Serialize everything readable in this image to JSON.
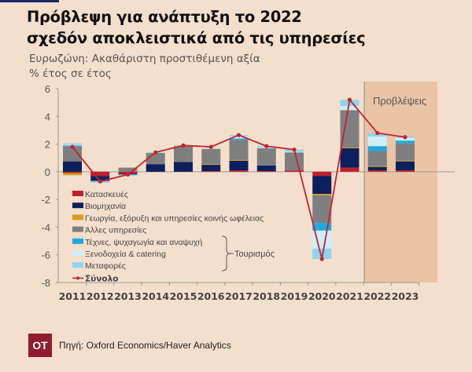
{
  "title_lines": [
    "Πρόβλεψη για ανάπτυξη το 2022",
    "σχεδόν αποκλειστικά από τις υπηρεσίες"
  ],
  "subtitle_lines": [
    "Ευρωζώνη: Ακαθάριστη προστιθέμενη αξία",
    "% έτος σε έτος"
  ],
  "source": "Πηγή: Oxford Economics/Haver Analytics",
  "logo_text": "OT",
  "chart_data": {
    "type": "bar",
    "stacked": true,
    "categories": [
      "2011",
      "2012",
      "2013",
      "2014",
      "2015",
      "2016",
      "2017",
      "2018",
      "2019",
      "2020",
      "2021",
      "2022",
      "2023"
    ],
    "ylim": [
      -8,
      6
    ],
    "yticks": [
      "6",
      "4",
      "2",
      "0",
      "-2",
      "-4",
      "-6",
      "-8"
    ],
    "forecast_label": "Προβλέψεις",
    "forecast_categories": [
      "2022",
      "2023"
    ],
    "group_label": "Τουρισμός",
    "series": [
      {
        "name": "Κατασκευές",
        "color": "#c0202a",
        "values": [
          -0.1,
          -0.3,
          -0.15,
          0.0,
          0.0,
          0.05,
          0.1,
          0.05,
          0.1,
          -0.3,
          0.3,
          0.1,
          0.1
        ]
      },
      {
        "name": "Βιομηχανία",
        "color": "#0d1f5c",
        "values": [
          0.75,
          -0.35,
          -0.05,
          0.55,
          0.7,
          0.45,
          0.7,
          0.4,
          0.0,
          -1.3,
          1.4,
          0.25,
          0.65
        ]
      },
      {
        "name": "Γεωργία, εξόρυξη και υπηρεσίες κοινής ωφέλειας",
        "color": "#d4a020",
        "values": [
          -0.15,
          0.0,
          0.0,
          0.0,
          0.0,
          0.05,
          0.05,
          0.0,
          0.0,
          -0.1,
          0.05,
          0.05,
          0.05
        ]
      },
      {
        "name": "Άλλες υπηρεσίες",
        "color": "#7f7f7f",
        "values": [
          1.1,
          -0.05,
          0.3,
          0.8,
          1.15,
          1.1,
          1.45,
          1.25,
          1.3,
          -2.0,
          2.7,
          1.1,
          1.25
        ]
      },
      {
        "name": "Τέχνες, ψυχαγωγία και αναψυχή",
        "color": "#1fa8e0",
        "values": [
          0.05,
          0.0,
          0.0,
          0.0,
          0.0,
          0.0,
          0.1,
          0.0,
          0.0,
          -0.55,
          0.0,
          0.35,
          0.2
        ]
      },
      {
        "name": "Ξενοδοχεία & catering",
        "color": "#cdebf6",
        "values": [
          0.05,
          0.0,
          0.0,
          0.0,
          0.0,
          0.0,
          0.15,
          0.05,
          0.05,
          -1.3,
          0.3,
          0.7,
          0.2
        ]
      },
      {
        "name": "Μεταφορές",
        "color": "#8fd3f0",
        "values": [
          0.1,
          -0.1,
          -0.1,
          0.05,
          0.05,
          0.0,
          0.1,
          0.1,
          0.15,
          -0.75,
          0.45,
          0.25,
          0.1
        ]
      }
    ],
    "total": {
      "name": "Σύνολο",
      "color": "#c4232e",
      "values": [
        1.8,
        -0.7,
        -0.2,
        1.4,
        1.9,
        1.8,
        2.65,
        1.85,
        1.6,
        -6.3,
        5.2,
        2.8,
        2.5
      ]
    }
  }
}
